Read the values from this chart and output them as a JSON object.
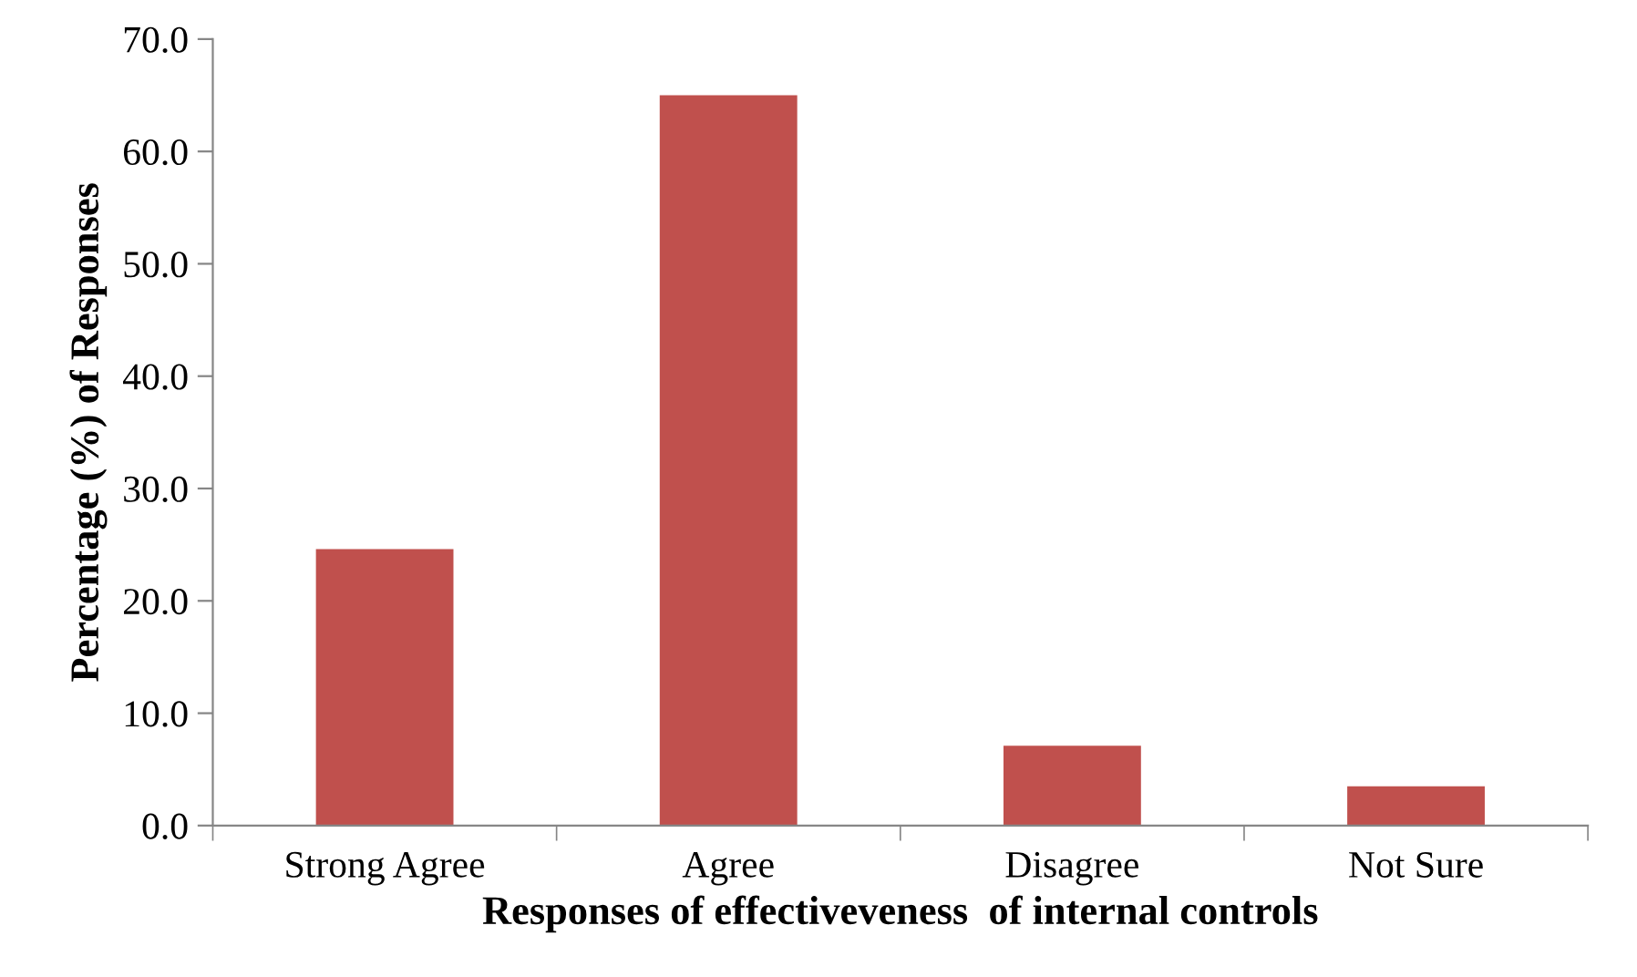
{
  "chart_data": {
    "type": "bar",
    "categories": [
      "Strong Agree",
      "Agree",
      "Disagree",
      "Not Sure"
    ],
    "values": [
      24.6,
      65.0,
      7.1,
      3.5
    ],
    "color": "#c0504d",
    "xlabel": "Responses of effectiveveness  of internal controls",
    "ylabel": "Percentage (%) of Responses",
    "ylim": [
      0,
      70
    ],
    "yticks": [
      {
        "value": 0,
        "label": "0.0"
      },
      {
        "value": 10,
        "label": "10.0"
      },
      {
        "value": 20,
        "label": "20.0"
      },
      {
        "value": 30,
        "label": "30.0"
      },
      {
        "value": 40,
        "label": "40.0"
      },
      {
        "value": 50,
        "label": "50.0"
      },
      {
        "value": 60,
        "label": "60.0"
      },
      {
        "value": 70,
        "label": "70.0"
      }
    ],
    "grid": false,
    "legend": false
  }
}
